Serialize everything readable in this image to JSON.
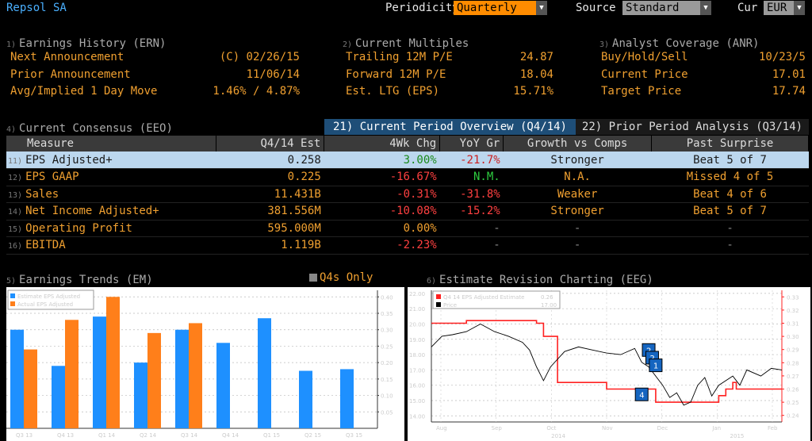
{
  "header": {
    "security": "Repsol SA",
    "periodicity_label": "Periodicity",
    "periodicity_value": "Quarterly",
    "source_label": "Source",
    "source_value": "Standard",
    "cur_label": "Cur",
    "cur_value": "EUR"
  },
  "earnings_history": {
    "num": "1)",
    "title": "Earnings History (ERN)",
    "rows": [
      {
        "label": "Next Announcement",
        "value": "(C)  02/26/15"
      },
      {
        "label": "Prior Announcement",
        "value": "11/06/14"
      },
      {
        "label": "Avg/Implied 1 Day Move",
        "value": "1.46% / 4.87%"
      }
    ]
  },
  "current_multiples": {
    "num": "2)",
    "title": "Current Multiples",
    "rows": [
      {
        "label": "Trailing 12M P/E",
        "value": "24.87"
      },
      {
        "label": "Forward 12M P/E",
        "value": "18.04"
      },
      {
        "label": "Est. LTG (EPS)",
        "value": "15.71%"
      }
    ]
  },
  "analyst_coverage": {
    "num": "3)",
    "title": "Analyst Coverage (ANR)",
    "rows": [
      {
        "label": "Buy/Hold/Sell",
        "value": "10/23/5"
      },
      {
        "label": "Current Price",
        "value": "17.01"
      },
      {
        "label": "Target Price",
        "value": "17.74"
      }
    ]
  },
  "consensus": {
    "num": "4)",
    "title": "Current Consensus (EEO)",
    "tab_current": "21) Current Period Overview (Q4/14)",
    "tab_prior": "22) Prior Period Analysis (Q3/14)",
    "columns": [
      "Measure",
      "Q4/14 Est",
      "4Wk Chg",
      "YoY Gr",
      "Growth vs Comps",
      "Past Surprise"
    ],
    "rows": [
      {
        "num": "11)",
        "measure": "EPS Adjusted+",
        "est": "0.258",
        "chg": "3.00%",
        "yoy": "-21.7%",
        "comps": "Stronger",
        "surprise": "Beat 5 of 7"
      },
      {
        "num": "12)",
        "measure": "EPS GAAP",
        "est": "0.225",
        "chg": "-16.67%",
        "yoy": "N.M.",
        "comps": "N.A.",
        "surprise": "Missed 4 of 5"
      },
      {
        "num": "13)",
        "measure": "Sales",
        "est": "11.431B",
        "chg": "-0.31%",
        "yoy": "-31.8%",
        "comps": "Weaker",
        "surprise": "Beat 4 of 6"
      },
      {
        "num": "14)",
        "measure": "Net Income Adjusted+",
        "est": "381.556M",
        "chg": "-10.08%",
        "yoy": "-15.2%",
        "comps": "Stronger",
        "surprise": "Beat 5 of 7"
      },
      {
        "num": "15)",
        "measure": "Operating Profit",
        "est": "595.000M",
        "chg": "0.00%",
        "yoy": "-",
        "comps": "-",
        "surprise": "-"
      },
      {
        "num": "16)",
        "measure": "EBITDA",
        "est": "1.119B",
        "chg": "-2.23%",
        "yoy": "-",
        "comps": "-",
        "surprise": "-"
      }
    ],
    "colors": {
      "positive": "#2ecc40",
      "negative": "#ff4040",
      "neutral": "#f0a030"
    }
  },
  "earnings_trends": {
    "num": "5)",
    "title": "Earnings Trends (EM)",
    "q4s_label": "Q4s Only"
  },
  "revision": {
    "num": "6)",
    "title": "Estimate Revision Charting (EEG)"
  },
  "chart_data": [
    {
      "type": "bar",
      "categories": [
        "Q3 13",
        "Q4 13",
        "Q1 14",
        "Q2 14",
        "Q3 14",
        "Q4 14",
        "Q1 15",
        "Q2 15",
        "Q3 15"
      ],
      "series": [
        {
          "name": "Estimate EPS Adjusted",
          "color": "#1e90ff",
          "values": [
            0.3,
            0.19,
            0.34,
            0.2,
            0.3,
            0.26,
            0.335,
            0.175,
            0.18
          ]
        },
        {
          "name": "Actual EPS Adjusted",
          "color": "#ff7f1a",
          "values": [
            0.24,
            0.33,
            0.4,
            0.29,
            0.32,
            null,
            null,
            null,
            null
          ]
        }
      ],
      "ylim": [
        0,
        0.42
      ],
      "yticks": [
        "0.05",
        "0.10",
        "0.15",
        "0.20",
        "0.25",
        "0.30",
        "0.35",
        "0.40"
      ]
    },
    {
      "type": "line",
      "series": [
        {
          "name": "Q4 14 EPS Adjusted Estimate",
          "legend_value": "0.26",
          "color": "#ff2020",
          "axis": "right",
          "points": [
            [
              0,
              0.31
            ],
            [
              0.1,
              0.31
            ],
            [
              0.1,
              0.312
            ],
            [
              0.2,
              0.312
            ],
            [
              0.2,
              0.312
            ],
            [
              0.3,
              0.312
            ],
            [
              0.3,
              0.31
            ],
            [
              0.32,
              0.31
            ],
            [
              0.32,
              0.3
            ],
            [
              0.36,
              0.3
            ],
            [
              0.36,
              0.265
            ],
            [
              0.5,
              0.265
            ],
            [
              0.5,
              0.26
            ],
            [
              0.6,
              0.26
            ],
            [
              0.6,
              0.26
            ],
            [
              0.64,
              0.26
            ],
            [
              0.64,
              0.25
            ],
            [
              0.78,
              0.25
            ],
            [
              0.82,
              0.25
            ],
            [
              0.82,
              0.255
            ],
            [
              0.84,
              0.255
            ],
            [
              0.84,
              0.26
            ],
            [
              0.86,
              0.26
            ],
            [
              0.86,
              0.265
            ],
            [
              0.87,
              0.265
            ],
            [
              0.87,
              0.26
            ],
            [
              1.0,
              0.26
            ]
          ]
        },
        {
          "name": "Price",
          "legend_value": "17.00",
          "color": "#000000",
          "axis": "left",
          "points": [
            [
              0,
              18.5
            ],
            [
              0.03,
              19.2
            ],
            [
              0.06,
              19.3
            ],
            [
              0.1,
              19.5
            ],
            [
              0.14,
              20.0
            ],
            [
              0.18,
              19.5
            ],
            [
              0.22,
              19.2
            ],
            [
              0.26,
              18.8
            ],
            [
              0.28,
              18.3
            ],
            [
              0.3,
              17.2
            ],
            [
              0.32,
              16.3
            ],
            [
              0.34,
              17.2
            ],
            [
              0.38,
              18.2
            ],
            [
              0.42,
              18.5
            ],
            [
              0.46,
              18.3
            ],
            [
              0.5,
              18.1
            ],
            [
              0.54,
              18.0
            ],
            [
              0.58,
              18.4
            ],
            [
              0.6,
              17.5
            ],
            [
              0.62,
              17.2
            ],
            [
              0.66,
              16.0
            ],
            [
              0.68,
              15.2
            ],
            [
              0.7,
              15.5
            ],
            [
              0.72,
              14.7
            ],
            [
              0.74,
              14.9
            ],
            [
              0.76,
              16.0
            ],
            [
              0.78,
              16.5
            ],
            [
              0.8,
              15.3
            ],
            [
              0.82,
              16.0
            ],
            [
              0.86,
              16.6
            ],
            [
              0.88,
              16.0
            ],
            [
              0.9,
              17.0
            ],
            [
              0.94,
              16.6
            ],
            [
              0.97,
              17.1
            ],
            [
              1.0,
              17.0
            ]
          ]
        }
      ],
      "x_ticks": [
        "Aug",
        "Sep",
        "Oct",
        "Nov",
        "Dec",
        "Jan",
        "Feb"
      ],
      "year_labels": [
        "2014",
        "2015"
      ],
      "left_ticks": [
        "14.00",
        "15.00",
        "16.00",
        "17.00",
        "18.00",
        "19.00",
        "20.00",
        "21.00",
        "22.00"
      ],
      "left_ylim": [
        13.6,
        22.2
      ],
      "right_ticks": [
        "0.24",
        "0.25",
        "0.26",
        "0.27",
        "0.28",
        "0.29",
        "0.30",
        "0.31",
        "0.32",
        "0.33"
      ],
      "right_ylim": [
        0.235,
        0.335
      ],
      "markers": [
        {
          "label": "2",
          "x": 0.62,
          "y": 18.3
        },
        {
          "label": "2",
          "x": 0.63,
          "y": 17.8
        },
        {
          "label": "1",
          "x": 0.64,
          "y": 17.3
        },
        {
          "label": "4",
          "x": 0.6,
          "y": 15.4
        }
      ]
    }
  ]
}
